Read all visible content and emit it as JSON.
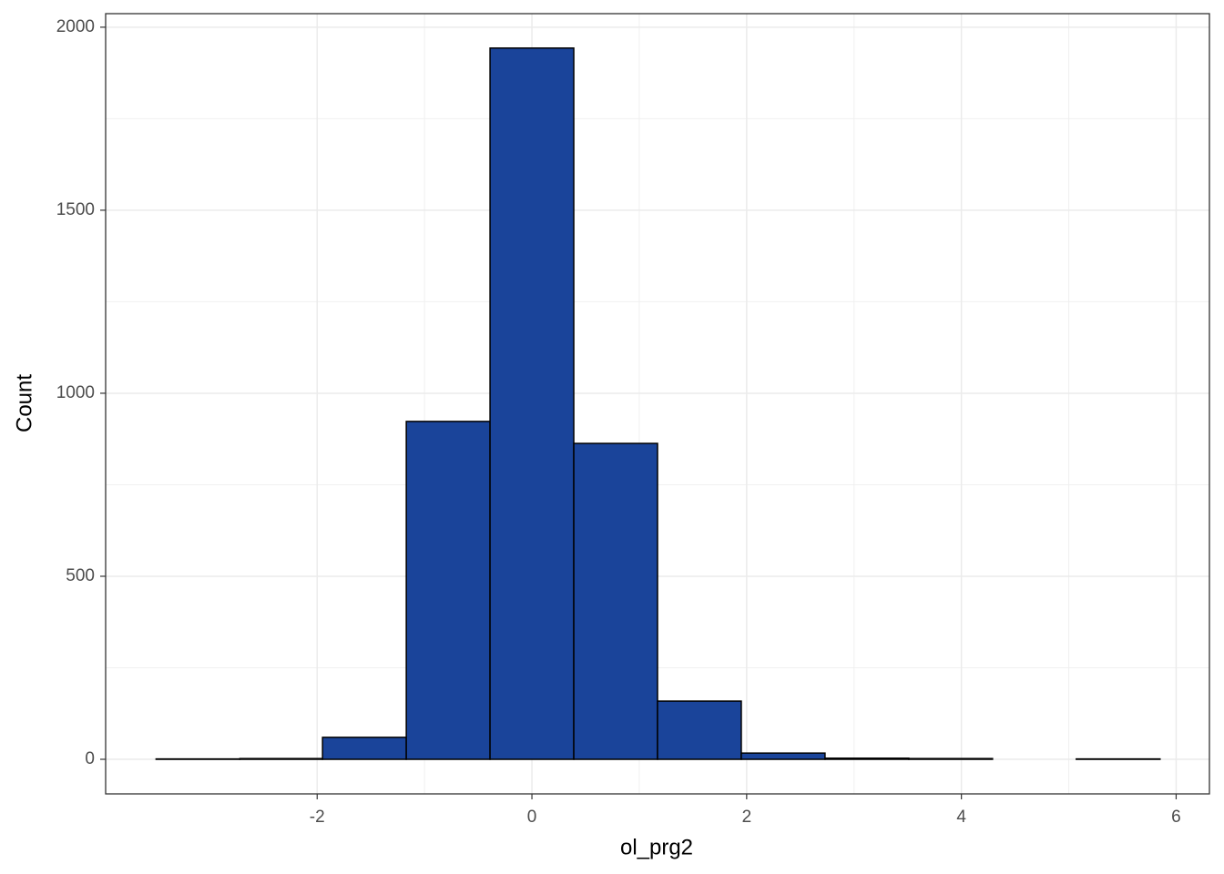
{
  "chart_data": {
    "type": "histogram",
    "x_label": "ol_prg2",
    "y_label": "Count",
    "bins": [
      -3.5,
      -2.72,
      -1.95,
      -1.17,
      -0.39,
      0.39,
      1.17,
      1.95,
      2.73,
      3.51,
      4.29,
      5.07,
      5.85
    ],
    "values": [
      1,
      2,
      60,
      923,
      1943,
      863,
      159,
      17,
      3,
      2,
      0,
      1
    ],
    "color": "#1a449a",
    "xlim": [
      -3.97,
      6.31
    ],
    "xticks": [
      -2,
      0,
      2,
      4,
      6
    ],
    "ylim": [
      -94.5,
      2037
    ],
    "yticks": [
      0,
      500,
      1000,
      1500,
      2000
    ],
    "grid": true
  }
}
